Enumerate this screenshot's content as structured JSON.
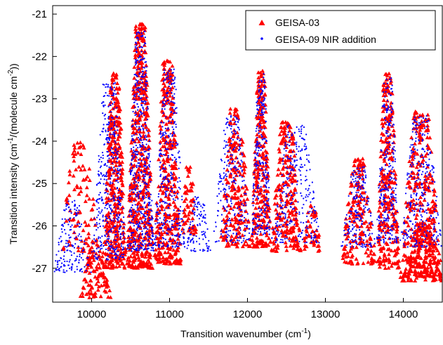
{
  "chart_data": {
    "type": "scatter",
    "title": "",
    "xlabel_main": "Transition wavenumber (cm",
    "xlabel_sup": "-1",
    "xlabel_end": ")",
    "ylabel_main": "Transition intensity (cm",
    "ylabel_sup1": "-1",
    "ylabel_mid": "/(molecule cm",
    "ylabel_sup2": "-2",
    "ylabel_end": "))",
    "xlim": [
      9500,
      14500
    ],
    "ylim": [
      -27.8,
      -20.8
    ],
    "xticks": [
      10000,
      11000,
      12000,
      13000,
      14000
    ],
    "yticks": [
      -21,
      -22,
      -23,
      -24,
      -25,
      -26,
      -27
    ],
    "grid": false,
    "legend_position": "top-right",
    "series": [
      {
        "name": "GEISA-03",
        "color": "#ff0000",
        "marker": "triangle",
        "clusters": [
          {
            "x_range": [
              9850,
              10250
            ],
            "y_range": [
              -27.7,
              -26.3
            ],
            "count": 110
          },
          {
            "x_range": [
              9600,
              10100
            ],
            "y_range": [
              -26.6,
              -24.0
            ],
            "count": 90
          },
          {
            "x_range": [
              10150,
              10450
            ],
            "y_range": [
              -27.0,
              -22.4
            ],
            "count": 380
          },
          {
            "x_range": [
              10450,
              10800
            ],
            "y_range": [
              -27.0,
              -21.2
            ],
            "count": 520
          },
          {
            "x_range": [
              10800,
              11150
            ],
            "y_range": [
              -26.9,
              -22.1
            ],
            "count": 360
          },
          {
            "x_range": [
              11150,
              11350
            ],
            "y_range": [
              -26.2,
              -24.6
            ],
            "count": 60
          },
          {
            "x_range": [
              11650,
              12050
            ],
            "y_range": [
              -26.5,
              -23.2
            ],
            "count": 200
          },
          {
            "x_range": [
              12050,
              12300
            ],
            "y_range": [
              -26.5,
              -22.3
            ],
            "count": 260
          },
          {
            "x_range": [
              12300,
              12700
            ],
            "y_range": [
              -26.6,
              -23.5
            ],
            "count": 240
          },
          {
            "x_range": [
              12700,
              12950
            ],
            "y_range": [
              -26.6,
              -25.5
            ],
            "count": 50
          },
          {
            "x_range": [
              13200,
              13650
            ],
            "y_range": [
              -26.9,
              -24.4
            ],
            "count": 180
          },
          {
            "x_range": [
              13650,
              13950
            ],
            "y_range": [
              -27.0,
              -22.4
            ],
            "count": 280
          },
          {
            "x_range": [
              13950,
              14500
            ],
            "y_range": [
              -27.3,
              -23.3
            ],
            "count": 320
          },
          {
            "x_range": [
              14000,
              14500
            ],
            "y_range": [
              -27.2,
              -26.0
            ],
            "count": 160
          }
        ]
      },
      {
        "name": "GEISA-09 NIR addition",
        "color": "#0000ff",
        "marker": "dot",
        "clusters": [
          {
            "x_range": [
              9500,
              10000
            ],
            "y_range": [
              -27.1,
              -25.4
            ],
            "count": 170
          },
          {
            "x_range": [
              10000,
              10450
            ],
            "y_range": [
              -26.8,
              -22.6
            ],
            "count": 420
          },
          {
            "x_range": [
              10450,
              10800
            ],
            "y_range": [
              -26.6,
              -21.4
            ],
            "count": 520
          },
          {
            "x_range": [
              10800,
              11200
            ],
            "y_range": [
              -26.5,
              -22.3
            ],
            "count": 360
          },
          {
            "x_range": [
              11200,
              11550
            ],
            "y_range": [
              -26.6,
              -25.3
            ],
            "count": 110
          },
          {
            "x_range": [
              11550,
              12050
            ],
            "y_range": [
              -26.4,
              -23.4
            ],
            "count": 240
          },
          {
            "x_range": [
              12050,
              12300
            ],
            "y_range": [
              -26.2,
              -22.4
            ],
            "count": 260
          },
          {
            "x_range": [
              12300,
              12950
            ],
            "y_range": [
              -26.4,
              -23.6
            ],
            "count": 280
          },
          {
            "x_range": [
              13200,
              13650
            ],
            "y_range": [
              -26.5,
              -24.6
            ],
            "count": 190
          },
          {
            "x_range": [
              13650,
              13950
            ],
            "y_range": [
              -26.4,
              -22.5
            ],
            "count": 280
          },
          {
            "x_range": [
              13950,
              14500
            ],
            "y_range": [
              -26.5,
              -23.4
            ],
            "count": 300
          }
        ]
      }
    ]
  }
}
